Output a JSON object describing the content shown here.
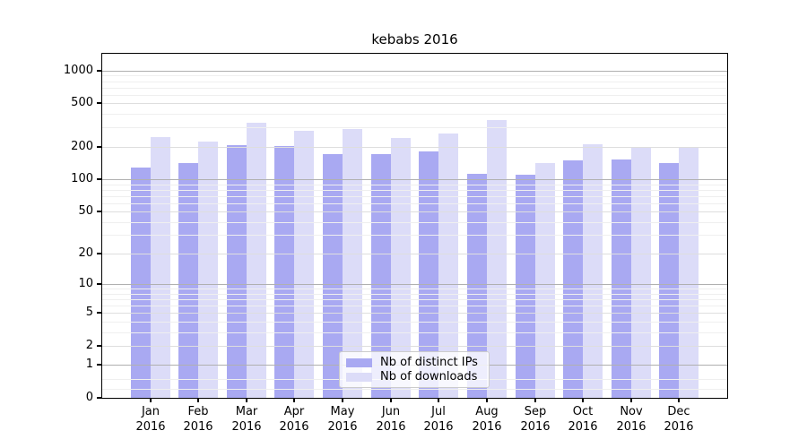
{
  "chart_data": {
    "type": "bar",
    "title": "kebabs 2016",
    "year": "2016",
    "months": [
      "Jan",
      "Feb",
      "Mar",
      "Apr",
      "May",
      "Jun",
      "Jul",
      "Aug",
      "Sep",
      "Oct",
      "Nov",
      "Dec"
    ],
    "series": [
      {
        "name": "Nb of distinct IPs",
        "color": "#a9a9f2",
        "values": [
          128,
          140,
          206,
          203,
          172,
          169,
          180,
          113,
          110,
          148,
          152,
          142
        ]
      },
      {
        "name": "Nb of downloads",
        "color": "#dcdcf8",
        "values": [
          245,
          222,
          330,
          282,
          290,
          240,
          265,
          350,
          142,
          210,
          198,
          200
        ]
      }
    ],
    "yscale": "log1p",
    "yticks": [
      0,
      1,
      2,
      5,
      10,
      20,
      50,
      100,
      200,
      500,
      1000
    ],
    "ylim": [
      0,
      1430
    ],
    "grid": true,
    "legend_position": "lower center inside",
    "colors": {
      "major_grid": "#b0b0b0",
      "mid_grid": "#dedede",
      "minor_grid": "#efefef",
      "spine": "#000000",
      "background": "#ffffff"
    }
  }
}
